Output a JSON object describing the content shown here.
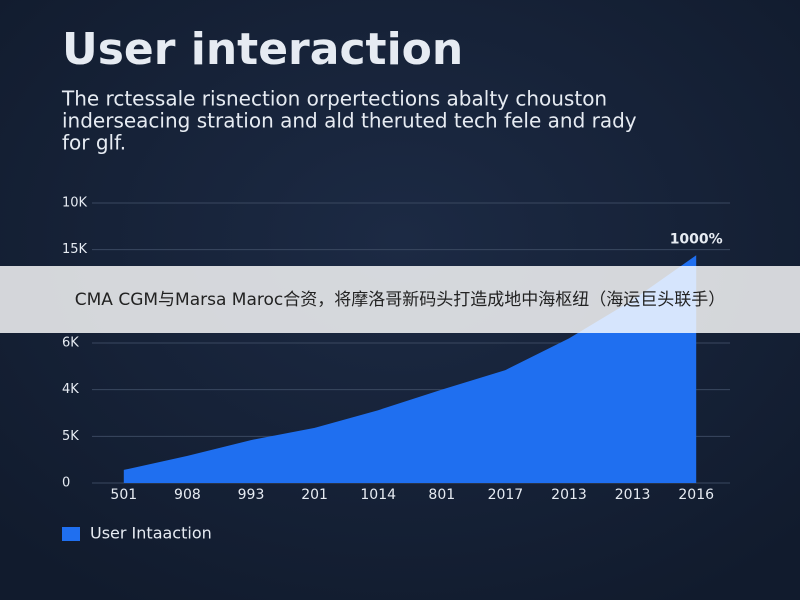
{
  "chart_data": {
    "type": "area",
    "title": "User interaction",
    "subtitle": [
      "The rctessale risnection orpertections abalty chouston",
      "inderseacing stration and ald theruted tech fele and rady",
      "for glf."
    ],
    "categories": [
      "501",
      "908",
      "993",
      "201",
      "1014",
      "801",
      "2017",
      "2013",
      "2013",
      "2016"
    ],
    "series": [
      {
        "name": "User Intaaction",
        "color": "#1f6ff0",
        "values": [
          0.28,
          0.58,
          0.92,
          1.18,
          1.56,
          2.0,
          2.42,
          3.1,
          3.92,
          4.88
        ]
      }
    ],
    "ylim": [
      0,
      6
    ],
    "yticks": [
      0,
      {
        "value": 1,
        "label": "5K"
      },
      {
        "value": 2,
        "label": "4K"
      },
      {
        "value": 3,
        "label": "6K"
      },
      {
        "value": 5,
        "label": "15K"
      },
      {
        "value": 6,
        "label": "10K"
      }
    ],
    "annotation": "1000%",
    "grid": true,
    "banner": "CMA CGM与Marsa Maroc合资，将摩洛哥新码头打造成地中海枢纽（海运巨头联手）"
  }
}
